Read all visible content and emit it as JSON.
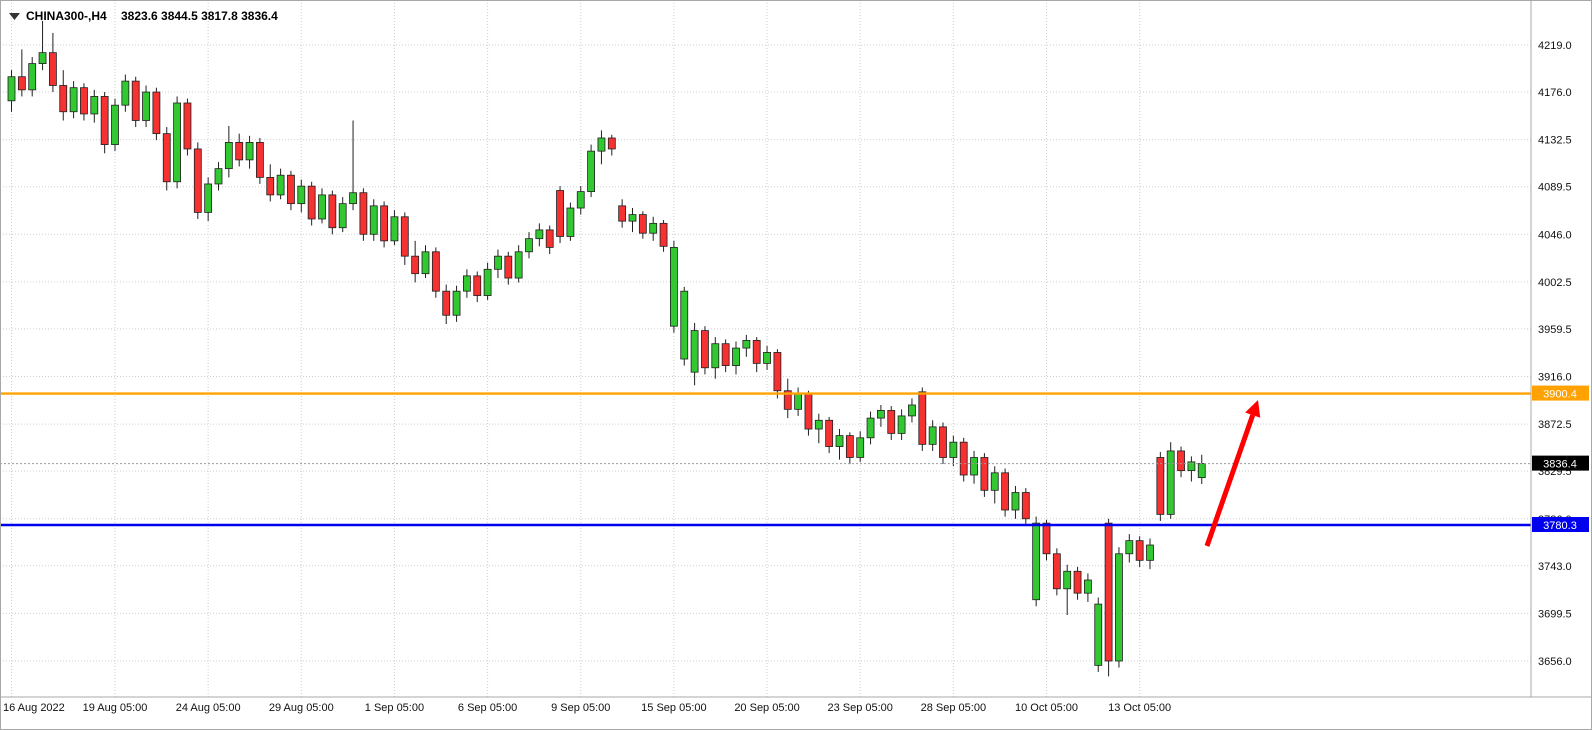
{
  "header": {
    "symbol": "CHINA300-,H4",
    "ohlc": "3823.6 3844.5 3817.8 3836.4"
  },
  "chart_data": {
    "type": "candlestick",
    "title": "CHINA300- H4 chart",
    "price_axis": {
      "range": [
        3656.0,
        4219.0
      ],
      "ticks": [
        "4219.0",
        "4176.0",
        "4132.5",
        "4089.5",
        "4046.0",
        "4002.5",
        "3959.5",
        "3916.0",
        "3872.5",
        "3829.5",
        "3786.0",
        "3743.0",
        "3699.5",
        "3656.0"
      ]
    },
    "time_axis": {
      "labels": [
        "16 Aug 2022",
        "19 Aug 05:00",
        "24 Aug 05:00",
        "29 Aug 05:00",
        "1 Sep 05:00",
        "6 Sep 05:00",
        "9 Sep 05:00",
        "15 Sep 05:00",
        "20 Sep 05:00",
        "23 Sep 05:00",
        "28 Sep 05:00",
        "10 Oct 05:00",
        "13 Oct 05:00"
      ],
      "label_indices": [
        0,
        10,
        19,
        28,
        37,
        46,
        55,
        64,
        73,
        82,
        91,
        100,
        109
      ]
    },
    "candles": [
      [
        4168,
        4196,
        4158,
        4190
      ],
      [
        4190,
        4215,
        4172,
        4178
      ],
      [
        4178,
        4208,
        4172,
        4202
      ],
      [
        4202,
        4241,
        4196,
        4212
      ],
      [
        4212,
        4230,
        4176,
        4182
      ],
      [
        4182,
        4196,
        4150,
        4158
      ],
      [
        4158,
        4186,
        4152,
        4180
      ],
      [
        4180,
        4184,
        4150,
        4156
      ],
      [
        4156,
        4178,
        4148,
        4172
      ],
      [
        4172,
        4176,
        4120,
        4128
      ],
      [
        4128,
        4170,
        4122,
        4164
      ],
      [
        4164,
        4192,
        4158,
        4186
      ],
      [
        4186,
        4190,
        4144,
        4150
      ],
      [
        4150,
        4182,
        4144,
        4176
      ],
      [
        4176,
        4180,
        4132,
        4138
      ],
      [
        4138,
        4144,
        4086,
        4094
      ],
      [
        4094,
        4172,
        4088,
        4166
      ],
      [
        4166,
        4170,
        4118,
        4124
      ],
      [
        4124,
        4130,
        4060,
        4066
      ],
      [
        4066,
        4098,
        4058,
        4092
      ],
      [
        4092,
        4112,
        4086,
        4106
      ],
      [
        4106,
        4145,
        4098,
        4130
      ],
      [
        4130,
        4138,
        4108,
        4114
      ],
      [
        4114,
        4136,
        4106,
        4130
      ],
      [
        4130,
        4134,
        4092,
        4098
      ],
      [
        4098,
        4110,
        4076,
        4082
      ],
      [
        4082,
        4106,
        4078,
        4100
      ],
      [
        4100,
        4104,
        4068,
        4074
      ],
      [
        4074,
        4096,
        4066,
        4090
      ],
      [
        4090,
        4094,
        4054,
        4060
      ],
      [
        4060,
        4088,
        4056,
        4082
      ],
      [
        4082,
        4086,
        4046,
        4052
      ],
      [
        4052,
        4080,
        4048,
        4074
      ],
      [
        4074,
        4150,
        4068,
        4084
      ],
      [
        4084,
        4088,
        4040,
        4046
      ],
      [
        4046,
        4078,
        4040,
        4072
      ],
      [
        4072,
        4076,
        4034,
        4040
      ],
      [
        4040,
        4068,
        4036,
        4062
      ],
      [
        4062,
        4066,
        4018,
        4026
      ],
      [
        4026,
        4040,
        4002,
        4010
      ],
      [
        4010,
        4036,
        4006,
        4030
      ],
      [
        4030,
        4034,
        3988,
        3994
      ],
      [
        3994,
        4000,
        3964,
        3972
      ],
      [
        3972,
        3999,
        3966,
        3994
      ],
      [
        3994,
        4014,
        3988,
        4008
      ],
      [
        4008,
        4012,
        3984,
        3990
      ],
      [
        3990,
        4020,
        3986,
        4014
      ],
      [
        4014,
        4032,
        4006,
        4026
      ],
      [
        4026,
        4030,
        4000,
        4006
      ],
      [
        4006,
        4036,
        4002,
        4030
      ],
      [
        4030,
        4048,
        4024,
        4042
      ],
      [
        4042,
        4056,
        4035,
        4050
      ],
      [
        4050,
        4054,
        4028,
        4034
      ],
      [
        4086,
        4090,
        4038,
        4044
      ],
      [
        4044,
        4075,
        4040,
        4070
      ],
      [
        4070,
        4090,
        4064,
        4085
      ],
      [
        4085,
        4128,
        4080,
        4122
      ],
      [
        4122,
        4141,
        4110,
        4134
      ],
      [
        4134,
        4137,
        4118,
        4124
      ],
      [
        4072,
        4078,
        4052,
        4058
      ],
      [
        4058,
        4070,
        4048,
        4064
      ],
      [
        4064,
        4067,
        4042,
        4047
      ],
      [
        4047,
        4062,
        4040,
        4056
      ],
      [
        4056,
        4059,
        4030,
        4035
      ],
      [
        3962,
        4040,
        3956,
        4034
      ],
      [
        3932,
        3998,
        3926,
        3994
      ],
      [
        3920,
        3965,
        3908,
        3958
      ],
      [
        3958,
        3962,
        3918,
        3924
      ],
      [
        3924,
        3952,
        3914,
        3946
      ],
      [
        3946,
        3950,
        3920,
        3926
      ],
      [
        3926,
        3948,
        3918,
        3942
      ],
      [
        3942,
        3954,
        3934,
        3949
      ],
      [
        3949,
        3952,
        3920,
        3928
      ],
      [
        3928,
        3944,
        3922,
        3938
      ],
      [
        3938,
        3941,
        3896,
        3903
      ],
      [
        3903,
        3914,
        3878,
        3886
      ],
      [
        3886,
        3906,
        3880,
        3900
      ],
      [
        3900,
        3903,
        3862,
        3868
      ],
      [
        3868,
        3882,
        3855,
        3876
      ],
      [
        3876,
        3879,
        3846,
        3852
      ],
      [
        3852,
        3868,
        3840,
        3862
      ],
      [
        3862,
        3865,
        3836,
        3842
      ],
      [
        3842,
        3866,
        3838,
        3860
      ],
      [
        3860,
        3884,
        3854,
        3878
      ],
      [
        3878,
        3890,
        3870,
        3885
      ],
      [
        3885,
        3889,
        3858,
        3864
      ],
      [
        3864,
        3886,
        3858,
        3880
      ],
      [
        3880,
        3896,
        3874,
        3890
      ],
      [
        3902,
        3906,
        3848,
        3854
      ],
      [
        3854,
        3876,
        3848,
        3870
      ],
      [
        3870,
        3874,
        3836,
        3842
      ],
      [
        3842,
        3862,
        3834,
        3856
      ],
      [
        3856,
        3860,
        3820,
        3826
      ],
      [
        3826,
        3848,
        3818,
        3842
      ],
      [
        3842,
        3846,
        3806,
        3812
      ],
      [
        3812,
        3834,
        3800,
        3828
      ],
      [
        3828,
        3832,
        3788,
        3794
      ],
      [
        3794,
        3816,
        3786,
        3810
      ],
      [
        3810,
        3814,
        3780,
        3786
      ],
      [
        3712,
        3788,
        3706,
        3782
      ],
      [
        3782,
        3785,
        3748,
        3754
      ],
      [
        3754,
        3759,
        3716,
        3722
      ],
      [
        3722,
        3744,
        3698,
        3738
      ],
      [
        3738,
        3742,
        3712,
        3718
      ],
      [
        3718,
        3736,
        3710,
        3730
      ],
      [
        3652,
        3714,
        3646,
        3708
      ],
      [
        3782,
        3786,
        3642,
        3656
      ],
      [
        3656,
        3760,
        3650,
        3754
      ],
      [
        3754,
        3772,
        3746,
        3766
      ],
      [
        3766,
        3770,
        3742,
        3748
      ],
      [
        3748,
        3768,
        3740,
        3762
      ],
      [
        3842,
        3847,
        3784,
        3790
      ],
      [
        3790,
        3856,
        3786,
        3848
      ],
      [
        3848,
        3852,
        3824,
        3830
      ],
      [
        3830,
        3843,
        3820,
        3838
      ],
      [
        3823.6,
        3844.5,
        3817.8,
        3836.4
      ]
    ],
    "levels": [
      {
        "name": "resistance",
        "price": 3900.4,
        "label": "3900.4",
        "color": "#FFA200"
      },
      {
        "name": "support",
        "price": 3780.3,
        "label": "3780.3",
        "color": "#0000EE"
      }
    ],
    "current_price": {
      "value": 3836.4,
      "label": "3836.4",
      "badge_color": "#000000"
    },
    "colors": {
      "up": "#31C831",
      "down": "#F53131",
      "wick": "#202020",
      "grid": "#CFCFCF",
      "arrow": "#FF0000"
    },
    "arrow": {
      "from": [
        1207,
        546
      ],
      "to": [
        1258,
        400
      ]
    }
  }
}
